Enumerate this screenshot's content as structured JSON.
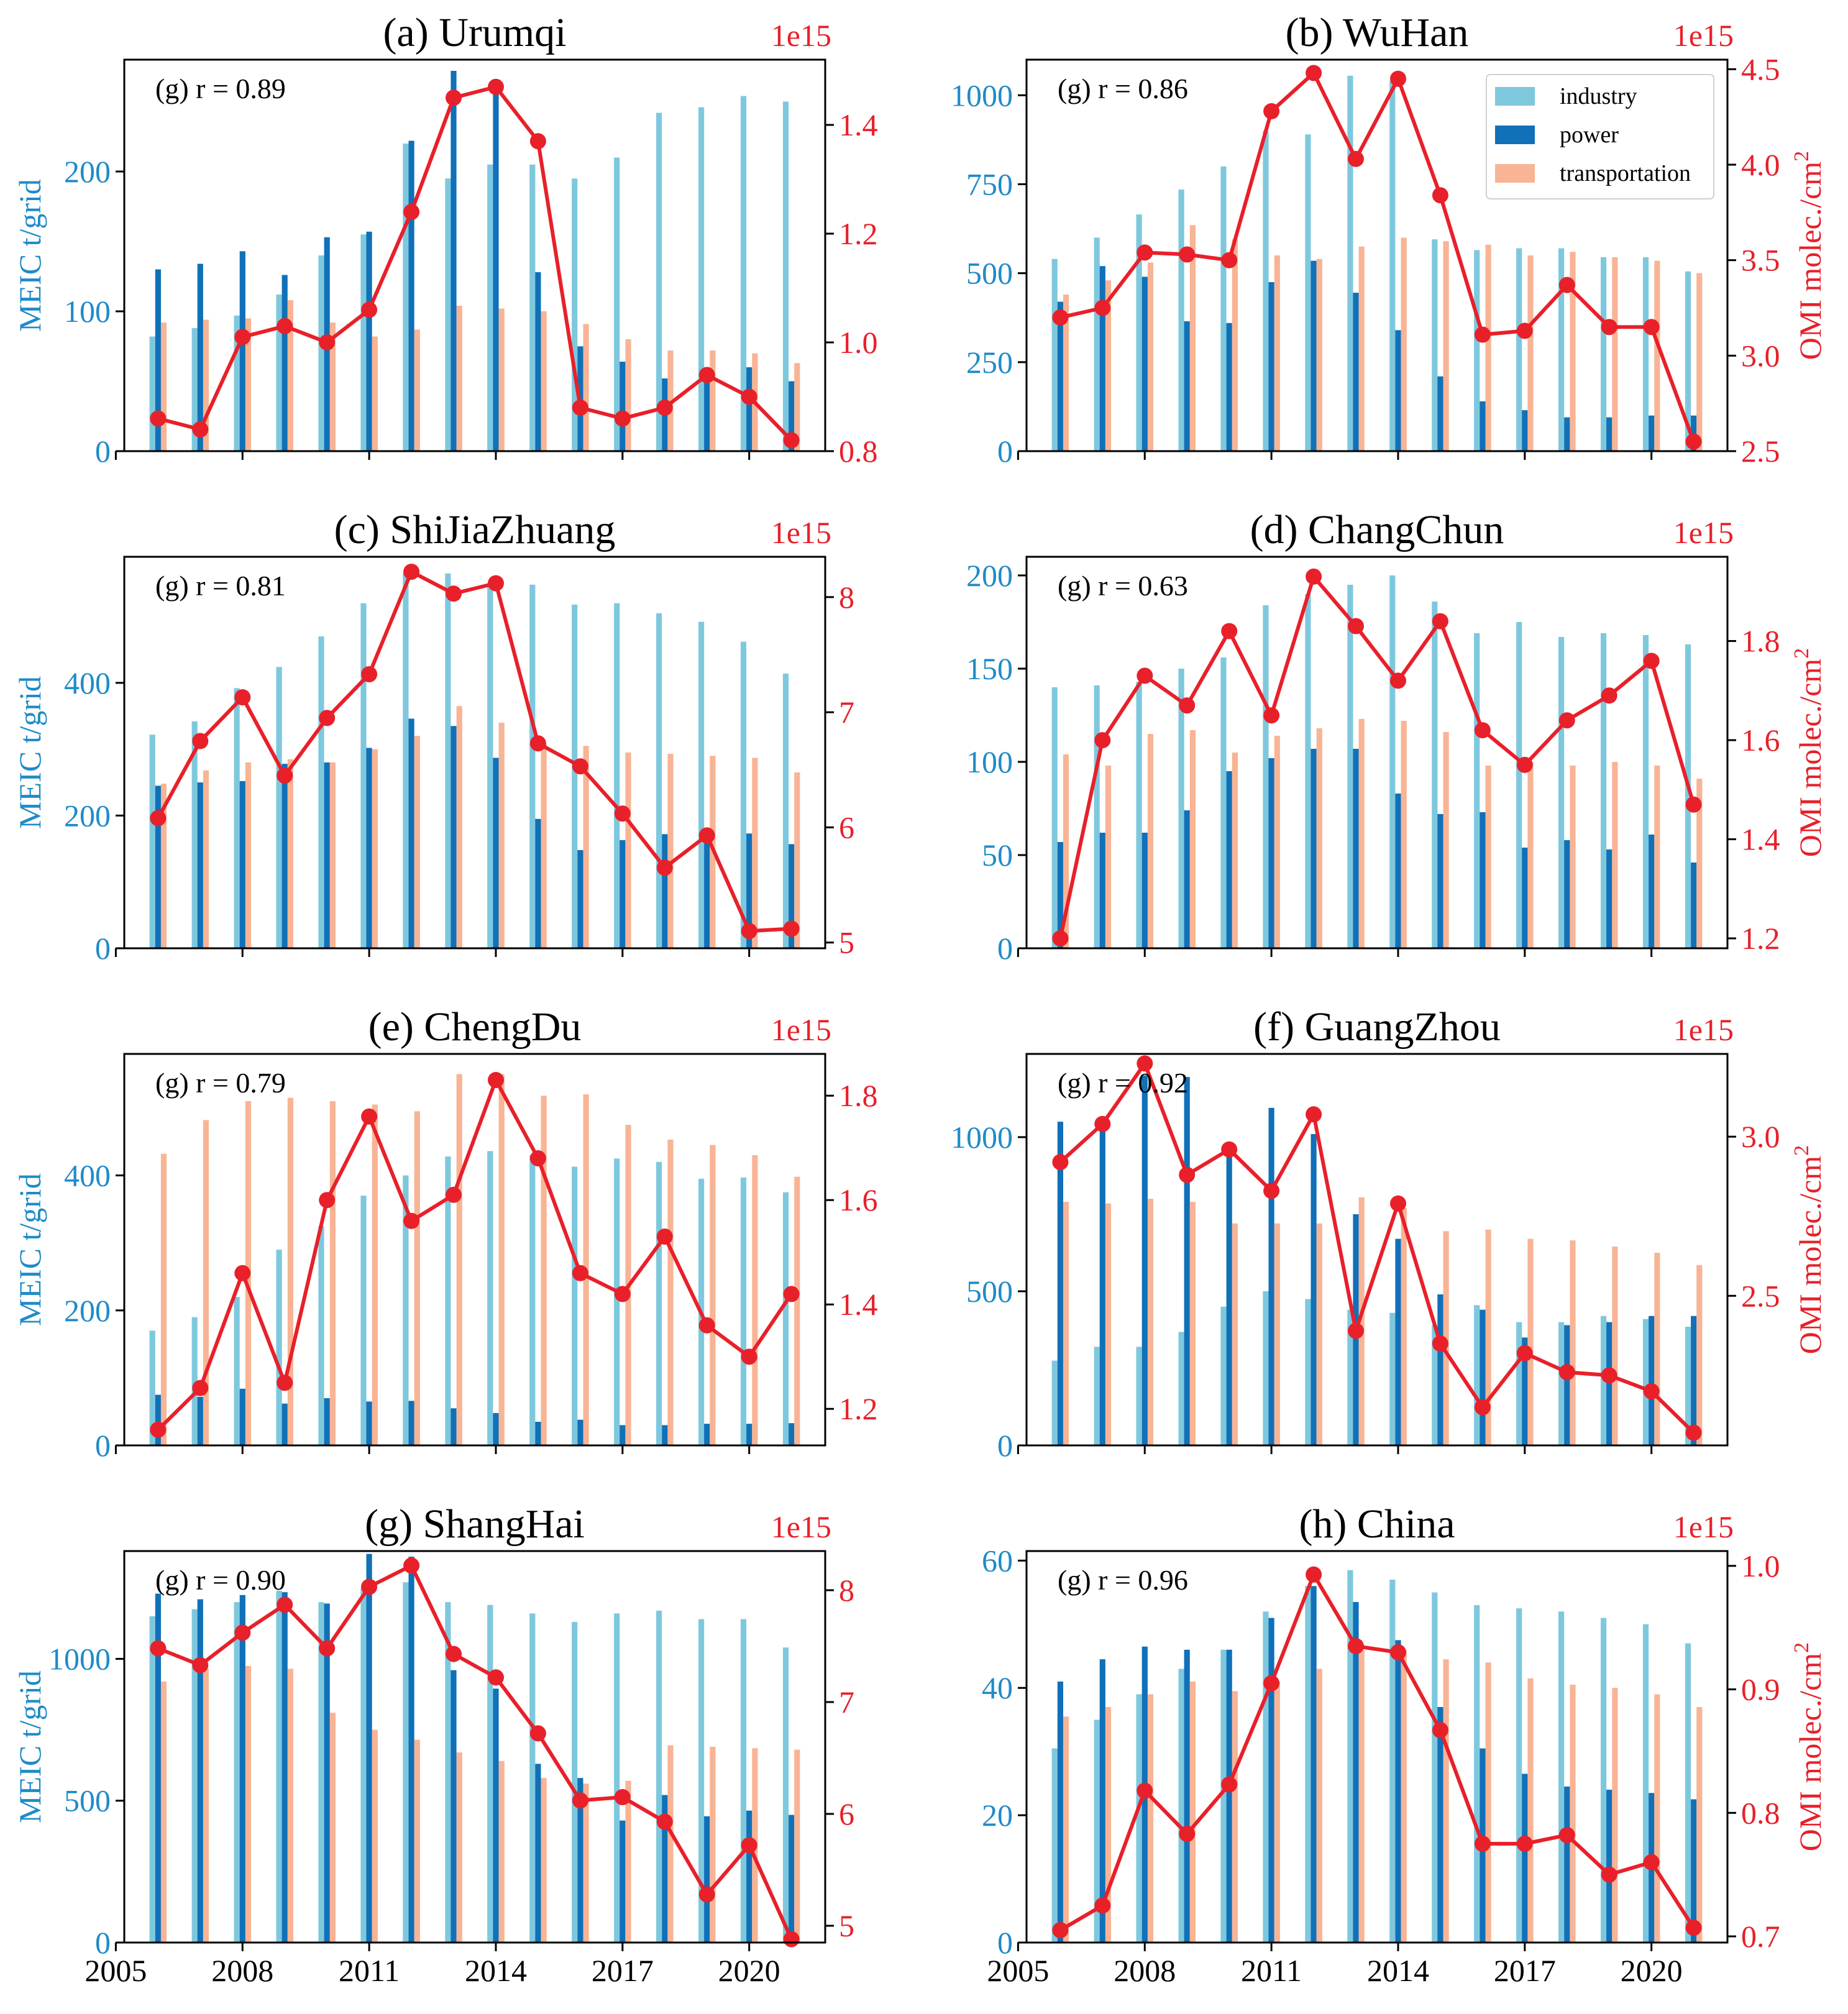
{
  "figure": {
    "colors": {
      "industry": "#7EC8DE",
      "power": "#1070B8",
      "transportation": "#F8B495",
      "no2": "#E8202A",
      "meic_axis": "#1F8BC8",
      "omi_axis": "#E8202A"
    },
    "left_ylabel": "MEIC t/grid",
    "right_ylabel_main": "OMI molec./cm",
    "right_ylabel_sup": "2",
    "offset_text": "1e15",
    "legend": [
      "industry",
      "power",
      "transportation"
    ]
  },
  "chart_data": [
    {
      "type": "bar",
      "title": "(a) Urumqi",
      "annotation": "(g) r = 0.89",
      "years": [
        2006,
        2007,
        2008,
        2009,
        2010,
        2011,
        2012,
        2013,
        2014,
        2015,
        2016,
        2017,
        2018,
        2019,
        2020,
        2021
      ],
      "xticks": [
        2005,
        2008,
        2011,
        2014,
        2017,
        2020
      ],
      "xlim": [
        2005.2,
        2021.8
      ],
      "ylim": [
        0,
        280
      ],
      "yticks": [
        0,
        100,
        200
      ],
      "y2lim": [
        0.8,
        1.52
      ],
      "y2ticks": [
        0.8,
        1.0,
        1.2,
        1.4
      ],
      "series": [
        {
          "name": "industry",
          "values": [
            82,
            88,
            97,
            112,
            140,
            155,
            220,
            195,
            205,
            205,
            195,
            210,
            242,
            246,
            254,
            250
          ]
        },
        {
          "name": "power",
          "values": [
            130,
            134,
            143,
            126,
            153,
            157,
            222,
            272,
            260,
            128,
            75,
            64,
            52,
            60,
            60,
            50
          ]
        },
        {
          "name": "transportation",
          "values": [
            92,
            94,
            95,
            108,
            92,
            82,
            87,
            104,
            102,
            100,
            91,
            80,
            72,
            72,
            70,
            63
          ]
        }
      ],
      "no2": [
        0.86,
        0.84,
        1.01,
        1.03,
        1.0,
        1.06,
        1.24,
        1.45,
        1.47,
        1.37,
        0.88,
        0.86,
        0.88,
        0.94,
        0.9,
        0.82
      ]
    },
    {
      "type": "bar",
      "title": "(b) WuHan",
      "annotation": "(g) r = 0.86",
      "years": [
        2006,
        2007,
        2008,
        2009,
        2010,
        2011,
        2012,
        2013,
        2014,
        2015,
        2016,
        2017,
        2018,
        2019,
        2020,
        2021
      ],
      "xticks": [
        2005,
        2008,
        2011,
        2014,
        2017,
        2020
      ],
      "xlim": [
        2005.2,
        2021.8
      ],
      "ylim": [
        0,
        1100
      ],
      "yticks": [
        0,
        250,
        500,
        750,
        1000
      ],
      "y2lim": [
        2.5,
        4.55
      ],
      "y2ticks": [
        2.5,
        3.0,
        3.5,
        4.0,
        4.5
      ],
      "series": [
        {
          "name": "industry",
          "values": [
            540,
            600,
            665,
            735,
            800,
            900,
            890,
            1055,
            1040,
            595,
            565,
            570,
            570,
            545,
            545,
            505
          ]
        },
        {
          "name": "power",
          "values": [
            420,
            520,
            490,
            365,
            360,
            475,
            535,
            445,
            340,
            210,
            140,
            115,
            95,
            95,
            100,
            100
          ]
        },
        {
          "name": "transportation",
          "values": [
            440,
            480,
            530,
            635,
            595,
            550,
            540,
            575,
            600,
            590,
            580,
            550,
            560,
            545,
            535,
            500
          ]
        }
      ],
      "no2": [
        3.2,
        3.25,
        3.54,
        3.53,
        3.5,
        4.28,
        4.48,
        4.03,
        4.45,
        3.84,
        3.11,
        3.13,
        3.37,
        3.15,
        3.15,
        2.55
      ]
    },
    {
      "type": "bar",
      "title": "(c) ShiJiaZhuang",
      "annotation": "(g) r = 0.81",
      "years": [
        2006,
        2007,
        2008,
        2009,
        2010,
        2011,
        2012,
        2013,
        2014,
        2015,
        2016,
        2017,
        2018,
        2019,
        2020,
        2021
      ],
      "xticks": [
        2005,
        2008,
        2011,
        2014,
        2017,
        2020
      ],
      "xlim": [
        2005.2,
        2021.8
      ],
      "ylim": [
        0,
        590
      ],
      "yticks": [
        0,
        200,
        400
      ],
      "y2lim": [
        4.95,
        8.35
      ],
      "y2ticks": [
        5,
        6,
        7,
        8
      ],
      "series": [
        {
          "name": "industry",
          "values": [
            322,
            342,
            392,
            424,
            470,
            520,
            565,
            565,
            548,
            548,
            518,
            520,
            505,
            492,
            462,
            414
          ]
        },
        {
          "name": "power",
          "values": [
            245,
            250,
            252,
            278,
            280,
            302,
            346,
            335,
            287,
            195,
            148,
            163,
            172,
            173,
            173,
            157
          ]
        },
        {
          "name": "transportation",
          "values": [
            248,
            268,
            280,
            285,
            280,
            300,
            320,
            365,
            340,
            308,
            305,
            295,
            293,
            290,
            287,
            265
          ]
        }
      ],
      "no2": [
        6.08,
        6.75,
        7.13,
        6.45,
        6.95,
        7.33,
        8.22,
        8.03,
        8.12,
        6.73,
        6.53,
        6.12,
        5.65,
        5.93,
        5.1,
        5.12
      ]
    },
    {
      "type": "bar",
      "title": "(d) ChangChun",
      "annotation": "(g) r = 0.63",
      "years": [
        2006,
        2007,
        2008,
        2009,
        2010,
        2011,
        2012,
        2013,
        2014,
        2015,
        2016,
        2017,
        2018,
        2019,
        2020,
        2021
      ],
      "xticks": [
        2005,
        2008,
        2011,
        2014,
        2017,
        2020
      ],
      "xlim": [
        2005.2,
        2021.8
      ],
      "ylim": [
        0,
        210
      ],
      "yticks": [
        0,
        50,
        100,
        150,
        200
      ],
      "y2lim": [
        1.18,
        1.97
      ],
      "y2ticks": [
        1.2,
        1.4,
        1.6,
        1.8
      ],
      "series": [
        {
          "name": "industry",
          "values": [
            140,
            141,
            143,
            150,
            156,
            184,
            190,
            195,
            200,
            186,
            169,
            175,
            167,
            169,
            168,
            163
          ]
        },
        {
          "name": "power",
          "values": [
            57,
            62,
            62,
            74,
            95,
            102,
            107,
            107,
            83,
            72,
            73,
            54,
            58,
            53,
            61,
            46
          ]
        },
        {
          "name": "transportation",
          "values": [
            104,
            98,
            115,
            117,
            105,
            114,
            118,
            123,
            122,
            116,
            98,
            100,
            98,
            100,
            98,
            91
          ]
        }
      ],
      "no2": [
        1.2,
        1.6,
        1.73,
        1.67,
        1.82,
        1.65,
        1.93,
        1.83,
        1.72,
        1.84,
        1.62,
        1.55,
        1.64,
        1.69,
        1.76,
        1.47
      ]
    },
    {
      "type": "bar",
      "title": "(e) ChengDu",
      "annotation": "(g) r = 0.79",
      "years": [
        2006,
        2007,
        2008,
        2009,
        2010,
        2011,
        2012,
        2013,
        2014,
        2015,
        2016,
        2017,
        2018,
        2019,
        2020,
        2021
      ],
      "xticks": [
        2005,
        2008,
        2011,
        2014,
        2017,
        2020
      ],
      "xlim": [
        2005.2,
        2021.8
      ],
      "ylim": [
        0,
        580
      ],
      "yticks": [
        0,
        200,
        400
      ],
      "y2lim": [
        1.13,
        1.88
      ],
      "y2ticks": [
        1.2,
        1.4,
        1.6,
        1.8
      ],
      "series": [
        {
          "name": "industry",
          "values": [
            170,
            190,
            220,
            290,
            325,
            370,
            400,
            428,
            436,
            430,
            413,
            425,
            420,
            395,
            397,
            375
          ]
        },
        {
          "name": "power",
          "values": [
            75,
            72,
            84,
            62,
            70,
            65,
            66,
            55,
            48,
            35,
            38,
            30,
            30,
            32,
            32,
            33
          ]
        },
        {
          "name": "transportation",
          "values": [
            432,
            482,
            510,
            515,
            510,
            505,
            495,
            550,
            550,
            518,
            520,
            475,
            453,
            445,
            430,
            398
          ]
        }
      ],
      "no2": [
        1.16,
        1.24,
        1.46,
        1.25,
        1.6,
        1.76,
        1.56,
        1.61,
        1.83,
        1.68,
        1.46,
        1.42,
        1.53,
        1.36,
        1.3,
        1.42
      ]
    },
    {
      "type": "bar",
      "title": "(f) GuangZhou",
      "annotation": "(g) r = 0.92",
      "years": [
        2006,
        2007,
        2008,
        2009,
        2010,
        2011,
        2012,
        2013,
        2014,
        2015,
        2016,
        2017,
        2018,
        2019,
        2020,
        2021
      ],
      "xticks": [
        2005,
        2008,
        2011,
        2014,
        2017,
        2020
      ],
      "xlim": [
        2005.2,
        2021.8
      ],
      "ylim": [
        0,
        1270
      ],
      "yticks": [
        0,
        500,
        1000
      ],
      "y2lim": [
        2.03,
        3.26
      ],
      "y2ticks": [
        2.5,
        3.0
      ],
      "series": [
        {
          "name": "industry",
          "values": [
            275,
            320,
            320,
            368,
            450,
            500,
            475,
            440,
            430,
            390,
            455,
            400,
            400,
            420,
            410,
            385
          ]
        },
        {
          "name": "power",
          "values": [
            1050,
            1060,
            1200,
            1195,
            960,
            1095,
            1010,
            750,
            670,
            490,
            440,
            350,
            390,
            400,
            420,
            420
          ]
        },
        {
          "name": "transportation",
          "values": [
            790,
            785,
            800,
            790,
            720,
            720,
            720,
            805,
            770,
            695,
            700,
            670,
            665,
            645,
            625,
            585
          ]
        }
      ],
      "no2": [
        2.92,
        3.04,
        3.23,
        2.88,
        2.96,
        2.83,
        3.07,
        2.39,
        2.79,
        2.35,
        2.15,
        2.32,
        2.26,
        2.25,
        2.2,
        2.07
      ]
    },
    {
      "type": "bar",
      "title": "(g) ShangHai",
      "annotation": "(g) r = 0.90",
      "years": [
        2006,
        2007,
        2008,
        2009,
        2010,
        2011,
        2012,
        2013,
        2014,
        2015,
        2016,
        2017,
        2018,
        2019,
        2020,
        2021
      ],
      "xticks": [
        2005,
        2008,
        2011,
        2014,
        2017,
        2020
      ],
      "xlabels": [
        "2005",
        "2008",
        "2011",
        "2014",
        "2017",
        "2020"
      ],
      "xlim": [
        2005.2,
        2021.8
      ],
      "ylim": [
        0,
        1380
      ],
      "yticks": [
        0,
        500,
        1000
      ],
      "y2lim": [
        4.85,
        8.35
      ],
      "y2ticks": [
        5,
        6,
        7,
        8
      ],
      "series": [
        {
          "name": "industry",
          "values": [
            1150,
            1175,
            1200,
            1240,
            1200,
            1250,
            1270,
            1200,
            1190,
            1160,
            1130,
            1160,
            1170,
            1140,
            1140,
            1040
          ]
        },
        {
          "name": "power",
          "values": [
            1230,
            1210,
            1225,
            1235,
            1195,
            1370,
            1360,
            960,
            895,
            630,
            580,
            430,
            520,
            445,
            465,
            450
          ]
        },
        {
          "name": "transportation",
          "values": [
            920,
            965,
            975,
            965,
            810,
            750,
            715,
            670,
            640,
            580,
            560,
            570,
            695,
            690,
            685,
            680
          ]
        }
      ],
      "no2": [
        7.48,
        7.33,
        7.62,
        7.87,
        7.48,
        8.03,
        8.22,
        7.43,
        7.22,
        6.72,
        6.12,
        6.15,
        5.93,
        5.28,
        5.72,
        4.88
      ]
    },
    {
      "type": "bar",
      "title": "(h) China",
      "annotation": "(g) r = 0.96",
      "years": [
        2006,
        2007,
        2008,
        2009,
        2010,
        2011,
        2012,
        2013,
        2014,
        2015,
        2016,
        2017,
        2018,
        2019,
        2020,
        2021
      ],
      "xticks": [
        2005,
        2008,
        2011,
        2014,
        2017,
        2020
      ],
      "xlabels": [
        "2005",
        "2008",
        "2011",
        "2014",
        "2017",
        "2020"
      ],
      "xlim": [
        2005.2,
        2021.8
      ],
      "ylim": [
        0,
        61.5
      ],
      "yticks": [
        0,
        20,
        40,
        60
      ],
      "y2lim": [
        0.695,
        1.012
      ],
      "y2ticks": [
        0.7,
        0.8,
        0.9,
        1.0
      ],
      "series": [
        {
          "name": "industry",
          "values": [
            30.5,
            35,
            39,
            43,
            46,
            52,
            56,
            58.5,
            57,
            55,
            53,
            52.5,
            52,
            51,
            50,
            47
          ]
        },
        {
          "name": "power",
          "values": [
            41,
            44.5,
            46.5,
            46,
            46,
            51,
            56,
            53.5,
            47.5,
            37,
            30.5,
            26.5,
            24.5,
            24,
            23.5,
            22.5
          ]
        },
        {
          "name": "transportation",
          "values": [
            35.5,
            37,
            39,
            41,
            39.5,
            41,
            43,
            46,
            46,
            44.5,
            44,
            41.5,
            40.5,
            40,
            39,
            37
          ]
        }
      ],
      "no2": [
        0.705,
        0.725,
        0.818,
        0.783,
        0.823,
        0.905,
        0.993,
        0.935,
        0.93,
        0.867,
        0.775,
        0.775,
        0.782,
        0.75,
        0.76,
        0.707
      ]
    }
  ]
}
